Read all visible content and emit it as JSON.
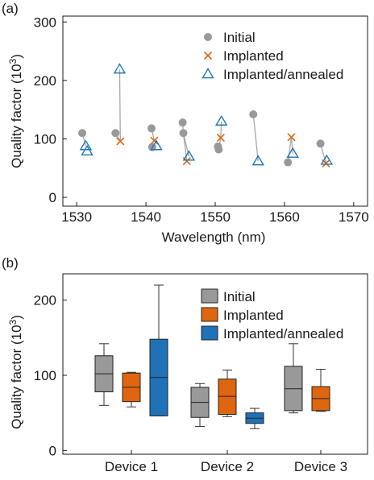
{
  "colors": {
    "initial": "#999999",
    "implanted": "#e0650f",
    "annealed": "#1f77b4",
    "initial_box": "#999999",
    "implanted_box": "#e0650f",
    "annealed_box": "#1f72b8",
    "connector": "#a8a8a8",
    "axis": "#1a1a1a"
  },
  "chart_data": [
    {
      "panel": "(a)",
      "type": "scatter",
      "xlabel": "Wavelength (nm)",
      "ylabel_main": "Quality factor (10",
      "ylabel_sup": "3",
      "ylabel_end": ")",
      "xlim": [
        1528,
        1572
      ],
      "ylim": [
        -15,
        310
      ],
      "xticks": [
        1530,
        1540,
        1550,
        1560,
        1570
      ],
      "yticks": [
        0,
        100,
        200,
        300
      ],
      "legend_position": "top-right",
      "series": [
        {
          "name": "Initial",
          "marker": "circle",
          "color_key": "initial",
          "points": [
            [
              1530.8,
              110
            ],
            [
              1535.6,
              110
            ],
            [
              1540.8,
              118
            ],
            [
              1540.9,
              86
            ],
            [
              1545.3,
              128
            ],
            [
              1545.4,
              110
            ],
            [
              1550.4,
              87
            ],
            [
              1550.5,
              82
            ],
            [
              1555.5,
              142
            ],
            [
              1560.5,
              60
            ],
            [
              1565.2,
              92
            ]
          ]
        },
        {
          "name": "Implanted",
          "marker": "x",
          "color_key": "implanted",
          "points": [
            [
              1536.3,
              96
            ],
            [
              1541.2,
              97
            ],
            [
              1545.9,
              62
            ],
            [
              1550.8,
              102
            ],
            [
              1561,
              103
            ],
            [
              1566,
              58
            ]
          ]
        },
        {
          "name": "Implanted/annealed",
          "marker": "triangle",
          "color_key": "annealed",
          "points": [
            [
              1531.3,
              88
            ],
            [
              1531.5,
              79
            ],
            [
              1536.2,
              219
            ],
            [
              1541.5,
              88
            ],
            [
              1546.2,
              70
            ],
            [
              1550.9,
              130
            ],
            [
              1556.2,
              62
            ],
            [
              1561.2,
              75
            ],
            [
              1566.1,
              63
            ]
          ]
        }
      ],
      "connectors": [
        [
          [
            1530.8,
            110
          ],
          [
            1531.3,
            88
          ]
        ],
        [
          [
            1535.6,
            110
          ],
          [
            1536.3,
            96
          ]
        ],
        [
          [
            1536.3,
            96
          ],
          [
            1536.2,
            219
          ]
        ],
        [
          [
            1540.8,
            118
          ],
          [
            1541.2,
            97
          ]
        ],
        [
          [
            1540.9,
            86
          ],
          [
            1541.5,
            88
          ]
        ],
        [
          [
            1545.3,
            128
          ],
          [
            1545.4,
            110
          ]
        ],
        [
          [
            1545.4,
            110
          ],
          [
            1545.9,
            62
          ]
        ],
        [
          [
            1545.4,
            110
          ],
          [
            1546.2,
            70
          ]
        ],
        [
          [
            1550.5,
            82
          ],
          [
            1550.8,
            102
          ]
        ],
        [
          [
            1550.8,
            102
          ],
          [
            1550.9,
            130
          ]
        ],
        [
          [
            1555.5,
            142
          ],
          [
            1556.2,
            62
          ]
        ],
        [
          [
            1560.5,
            60
          ],
          [
            1561,
            103
          ]
        ],
        [
          [
            1561,
            103
          ],
          [
            1561.2,
            75
          ]
        ],
        [
          [
            1565.2,
            92
          ],
          [
            1566,
            58
          ]
        ],
        [
          [
            1566,
            58
          ],
          [
            1566.1,
            63
          ]
        ]
      ]
    },
    {
      "panel": "(b)",
      "type": "box",
      "ylabel_main": "Quality factor (10",
      "ylabel_sup": "3",
      "ylabel_end": ")",
      "ylim": [
        -5,
        235
      ],
      "yticks": [
        0,
        100,
        200
      ],
      "legend_position": "top-right",
      "categories": [
        "Device 1",
        "Device 2",
        "Device 3"
      ],
      "series": [
        {
          "name": "Initial",
          "color_key": "initial_box",
          "boxes": [
            {
              "min": 60,
              "q1": 78,
              "median": 102,
              "q3": 126,
              "max": 142
            },
            {
              "min": 32,
              "q1": 44,
              "median": 64,
              "q3": 84,
              "max": 89
            },
            {
              "min": 50,
              "q1": 53,
              "median": 82,
              "q3": 112,
              "max": 142
            }
          ]
        },
        {
          "name": "Implanted",
          "color_key": "implanted_box",
          "boxes": [
            {
              "min": 58,
              "q1": 65,
              "median": 84,
              "q3": 103,
              "max": 104
            },
            {
              "min": 45,
              "q1": 48,
              "median": 72,
              "q3": 95,
              "max": 107
            },
            {
              "min": 52,
              "q1": 53,
              "median": 69,
              "q3": 85,
              "max": 108
            }
          ]
        },
        {
          "name": "Implanted/annealed",
          "color_key": "annealed_box",
          "boxes": [
            {
              "min": 46,
              "q1": 46,
              "median": 97,
              "q3": 148,
              "max": 220
            },
            {
              "min": 29,
              "q1": 36,
              "median": 43,
              "q3": 50,
              "max": 56
            },
            null
          ]
        }
      ]
    }
  ]
}
